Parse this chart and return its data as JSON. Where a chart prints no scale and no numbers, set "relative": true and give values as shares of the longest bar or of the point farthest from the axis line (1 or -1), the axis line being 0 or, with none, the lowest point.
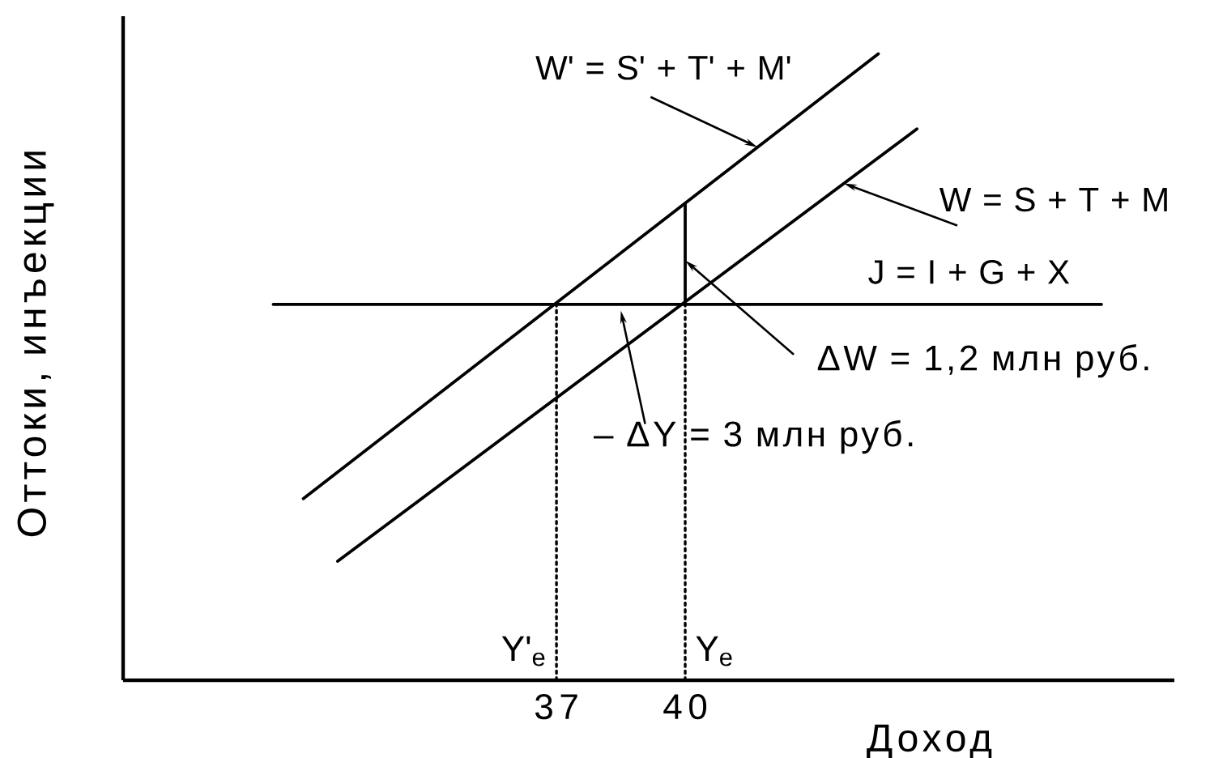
{
  "chart_data": {
    "type": "line",
    "xlabel": "Доход",
    "ylabel": "Оттоки, инъекции",
    "relative": true,
    "xlim": [
      26.9,
      51.4
    ],
    "xticks": [
      37,
      40
    ],
    "series": [
      {
        "name": "W' = S' + T' + M'",
        "color": "#000000",
        "x": [
          31.1,
          44.5
        ],
        "values": [
          0.29,
          1.0
        ]
      },
      {
        "name": "W = S + T + M",
        "color": "#000000",
        "x": [
          31.9,
          45.4
        ],
        "values": [
          0.19,
          0.88
        ]
      },
      {
        "name": "J = I + G + X",
        "color": "#000000",
        "x": [
          30.4,
          49.7
        ],
        "values": [
          0.6,
          0.6
        ]
      },
      {
        "color": "#000000",
        "x": [
          40,
          40
        ],
        "values": [
          0.6,
          0.76
        ]
      },
      {
        "color": "#000000",
        "x": [
          37,
          37
        ],
        "values": [
          0,
          0.6
        ],
        "line_style": "dotted"
      },
      {
        "color": "#000000",
        "x": [
          40,
          40
        ],
        "values": [
          0,
          0.6
        ],
        "line_style": "dotted"
      }
    ],
    "annotations": [
      {
        "text": "ΔW = 1,2 млн руб.",
        "x": 40,
        "y": 0.67
      },
      {
        "text": "– ΔY = 3 млн руб.",
        "x": 38.5,
        "y": 0.59
      },
      {
        "text": "Y'$_{e}$",
        "x": 37,
        "y": 0
      },
      {
        "text": "Y$_{e}$",
        "x": 40,
        "y": 0
      }
    ]
  }
}
